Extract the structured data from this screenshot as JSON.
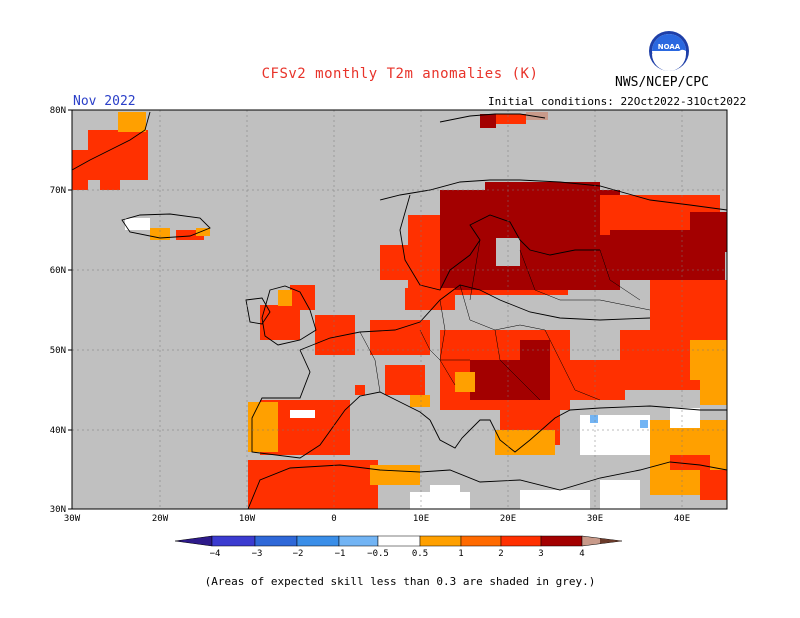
{
  "header": {
    "title": "CFSv2 monthly T2m anomalies (K)",
    "agency": "NWS/NCEP/CPC",
    "month": "Nov 2022",
    "initial_conditions": "Initial conditions: 22Oct2022-31Oct2022",
    "logo_text": "NOAA"
  },
  "map": {
    "lat_labels": [
      "80N",
      "70N",
      "60N",
      "50N",
      "40N",
      "30N"
    ],
    "lon_labels": [
      "30W",
      "20W",
      "10W",
      "0",
      "10E",
      "20E",
      "30E",
      "40E"
    ],
    "background_color": "#c0c0c0"
  },
  "colorbar": {
    "labels": [
      "−4",
      "−3",
      "−2",
      "−1",
      "−0.5",
      "0.5",
      "1",
      "2",
      "3",
      "4"
    ],
    "colors": [
      "#2d1a8a",
      "#3b3bd0",
      "#2f68d8",
      "#3a8ee8",
      "#72b4f4",
      "#ffffff",
      "#ffa000",
      "#ff6a00",
      "#ff3000",
      "#a30000",
      "#c89a8a",
      "#6a3a2a"
    ]
  },
  "footnote": "(Areas of expected skill less than 0.3 are shaded in grey.)"
}
